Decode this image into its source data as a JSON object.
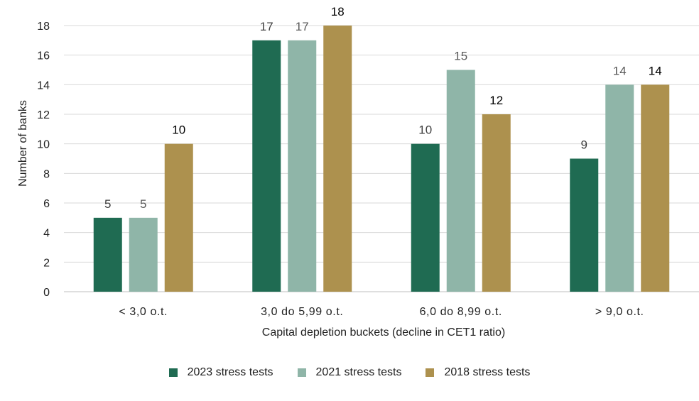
{
  "chart_data": {
    "type": "bar",
    "categories": [
      "< 3,0 o.t.",
      "3,0 do 5,99 o.t.",
      "6,0 do 8,99 o.t.",
      "> 9,0 o.t."
    ],
    "series": [
      {
        "name": "2023 stress tests",
        "values": [
          5,
          17,
          10,
          9
        ],
        "color": "#1f6b52",
        "label_color": "#404040"
      },
      {
        "name": "2021 stress tests",
        "values": [
          5,
          17,
          15,
          14
        ],
        "color": "#8fb5a8",
        "label_color": "#595959"
      },
      {
        "name": "2018 stress tests",
        "values": [
          10,
          18,
          12,
          14
        ],
        "color": "#ad914e",
        "label_color": "#000000"
      }
    ],
    "xlabel": "Capital depletion buckets (decline in CET1 ratio)",
    "ylabel": "Number of banks",
    "ylim": [
      0,
      18
    ],
    "yticks": [
      0,
      2,
      4,
      6,
      8,
      10,
      12,
      14,
      16,
      18
    ],
    "grid": true,
    "legend_position": "bottom"
  }
}
